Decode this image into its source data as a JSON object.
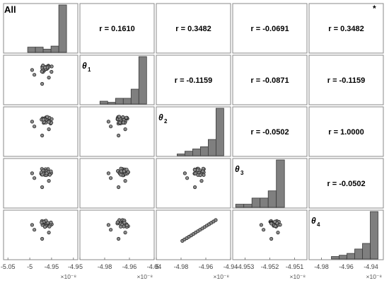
{
  "chart_data": {
    "type": "scatter-matrix",
    "corner_label": "All",
    "corner_mark": "*",
    "variables": [
      {
        "label": "",
        "sub": ""
      },
      {
        "label": "θ",
        "sub": "1"
      },
      {
        "label": "θ",
        "sub": "2"
      },
      {
        "label": "θ",
        "sub": "3"
      },
      {
        "label": "θ",
        "sub": "4"
      }
    ],
    "correlations": [
      [
        "",
        "r = 0.1610",
        "r = 0.3482",
        "r = -0.0691",
        "r = 0.3482"
      ],
      [
        "",
        "",
        "r = -0.1159",
        "r = -0.0871",
        "r = -0.1159"
      ],
      [
        "",
        "",
        "",
        "r = -0.0502",
        "r = 1.0000"
      ],
      [
        "",
        "",
        "",
        "",
        "r = -0.0502"
      ],
      [
        "",
        "",
        "",
        "",
        ""
      ]
    ],
    "histograms": [
      [
        0,
        1,
        1,
        0.6,
        1.2,
        9
      ],
      [
        0.5,
        0.3,
        1,
        1,
        2.6,
        8.3
      ],
      [
        0.3,
        0.8,
        1.2,
        1.6,
        2.9,
        8.5
      ],
      [
        0.3,
        0.3,
        0.9,
        0.9,
        1.6,
        4.6
      ],
      [
        0.4,
        0.6,
        0.9,
        1.6,
        2.5,
        7.6
      ]
    ],
    "x_axes": [
      {
        "ticks": [
          "-5.05",
          "-5",
          "-4.95",
          "-4.9"
        ],
        "exponent": "×10⁻⁸",
        "range": [
          -5.06,
          -4.89
        ],
        "values": [
          -5.05,
          -5.0,
          -4.95,
          -4.9
        ]
      },
      {
        "ticks": [
          "-5",
          "-4.98",
          "-4.96",
          "-4.94"
        ],
        "exponent": "×10⁻⁸",
        "range": [
          -5.0,
          -4.94
        ],
        "values": [
          -5.0,
          -4.98,
          -4.96,
          -4.94
        ]
      },
      {
        "ticks": [
          "-5",
          "-4.98",
          "-4.96",
          "-4.94"
        ],
        "exponent": "×10⁻⁸",
        "range": [
          -5.0,
          -4.94
        ],
        "values": [
          -5.0,
          -4.98,
          -4.96,
          -4.94
        ]
      },
      {
        "ticks": [
          "-4.953",
          "-4.952",
          "-4.951"
        ],
        "exponent": "×10⁻⁸",
        "range": [
          -4.9535,
          -4.9505
        ],
        "values": [
          -4.953,
          -4.952,
          -4.951
        ]
      },
      {
        "ticks": [
          "-4.98",
          "-4.96",
          "-4.94"
        ],
        "exponent": "×10⁻⁸",
        "range": [
          -4.99,
          -4.93
        ],
        "values": [
          -4.98,
          -4.96,
          -4.94
        ]
      }
    ]
  }
}
